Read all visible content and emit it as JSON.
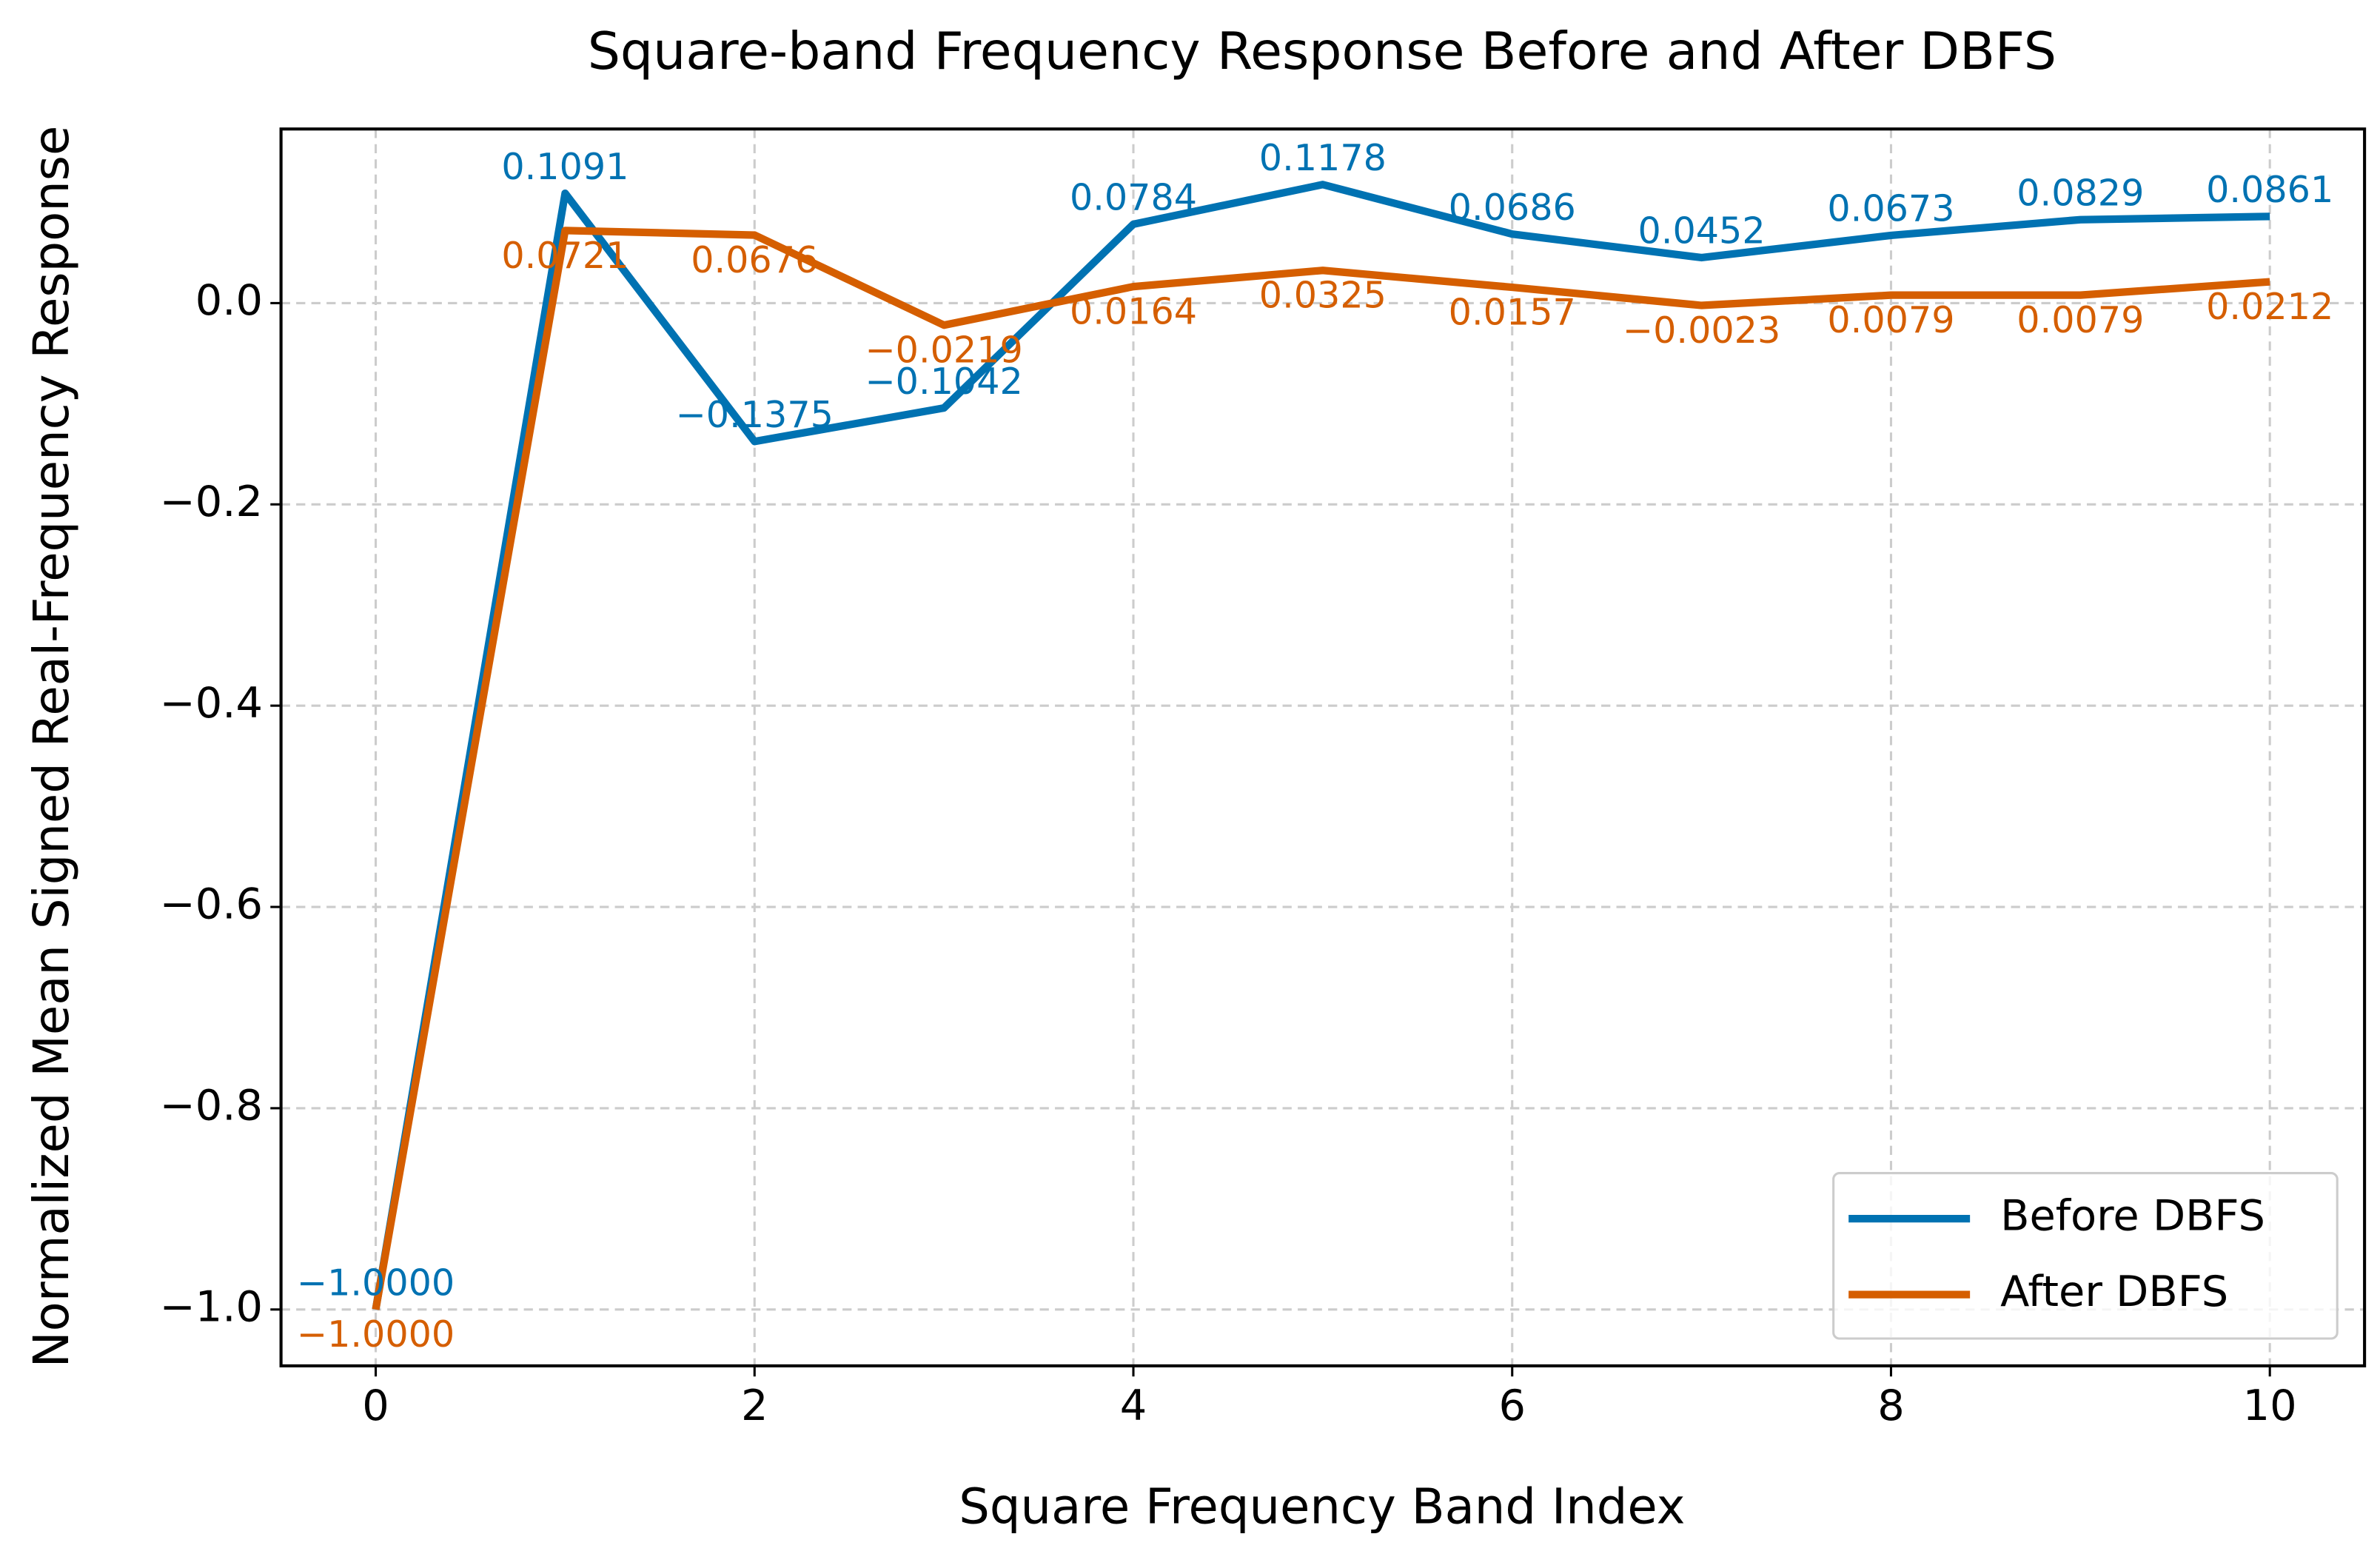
{
  "chart_data": {
    "type": "line",
    "title": "Square-band Frequency Response Before and After DBFS",
    "x_label": "Square Frequency Band Index",
    "y_label": "Normalized Mean Signed Real-Frequency Response",
    "x": [
      0,
      1,
      2,
      3,
      4,
      5,
      6,
      7,
      8,
      9,
      10
    ],
    "series": [
      {
        "name": "Before DBFS",
        "color": "#0072b2",
        "values": [
          -1,
          0.1091,
          -0.1375,
          -0.1042,
          0.0784,
          0.1178,
          0.0686,
          0.0452,
          0.0673,
          0.0829,
          0.0861
        ],
        "value_labels": [
          "−1.0000",
          "0.1091",
          "−0.1375",
          "−0.1042",
          "0.0784",
          "0.1178",
          "0.0686",
          "0.0452",
          "0.0673",
          "0.0829",
          "0.0861"
        ]
      },
      {
        "name": "After DBFS",
        "color": "#d55e00",
        "values": [
          -1,
          0.0721,
          0.0676,
          -0.0219,
          0.0164,
          0.0325,
          0.0157,
          -0.0023,
          0.0079,
          0.0079,
          0.0212
        ],
        "value_labels": [
          "−1.0000",
          "0.0721",
          "0.0676",
          "−0.0219",
          "0.0164",
          "0.0325",
          "0.0157",
          "−0.0023",
          "0.0079",
          "0.0079",
          "0.0212"
        ]
      }
    ],
    "xlim": [
      -0.5,
      10.5
    ],
    "ylim": [
      -1.056,
      0.173
    ],
    "xticks": [
      0,
      2,
      4,
      6,
      8,
      10
    ],
    "yticks": [
      {
        "value": 0,
        "label": "0.0"
      },
      {
        "value": -0.2,
        "label": "−0.2"
      },
      {
        "value": -0.4,
        "label": "−0.4"
      },
      {
        "value": -0.6,
        "label": "−0.6"
      },
      {
        "value": -0.8,
        "label": "−0.8"
      },
      {
        "value": -1,
        "label": "−1.0"
      }
    ],
    "grid": true,
    "legend": "lower right"
  }
}
